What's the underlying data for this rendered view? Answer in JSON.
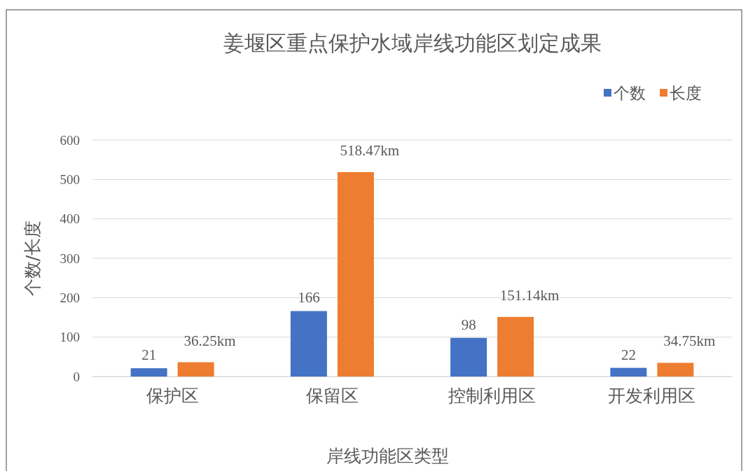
{
  "chart_data": {
    "type": "bar",
    "title": "姜堰区重点保护水域岸线功能区划定成果",
    "xlabel": "岸线功能区类型",
    "ylabel": "个数/长度",
    "categories": [
      "保护区",
      "保留区",
      "控制利用区",
      "开发利用区"
    ],
    "series": [
      {
        "name": "个数",
        "color": "#4472c4",
        "values": [
          21,
          166,
          98,
          22
        ],
        "value_labels": [
          "21",
          "166",
          "98",
          "22"
        ]
      },
      {
        "name": "长度",
        "color": "#ed7d31",
        "values": [
          36.25,
          518.47,
          151.14,
          34.75
        ],
        "value_labels": [
          "36.25km",
          "518.47km",
          "151.14km",
          "34.75km"
        ]
      }
    ],
    "ylim": [
      0,
      600
    ],
    "yticks": [
      0,
      100,
      200,
      300,
      400,
      500,
      600
    ],
    "grid": "y",
    "legend": "top right"
  }
}
